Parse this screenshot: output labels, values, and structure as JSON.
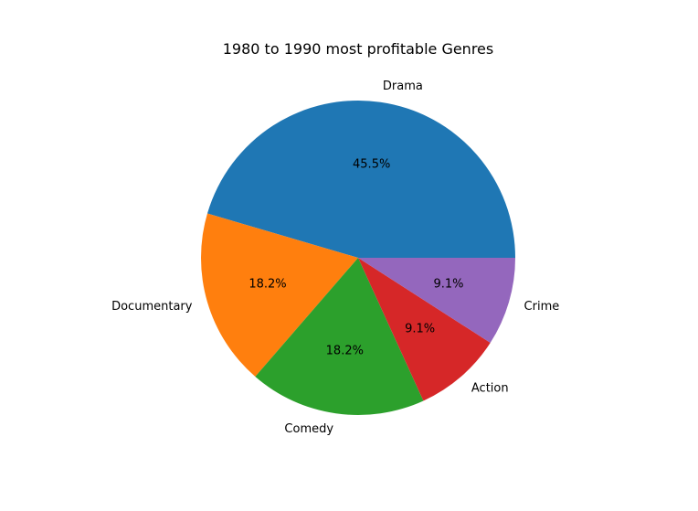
{
  "chart_data": {
    "type": "pie",
    "title": "1980 to 1990 most profitable Genres",
    "slices": [
      {
        "label": "Drama",
        "value": 45.5,
        "pct_label": "45.5%",
        "color": "#1f77b4"
      },
      {
        "label": "Documentary",
        "value": 18.2,
        "pct_label": "18.2%",
        "color": "#ff7f0e"
      },
      {
        "label": "Comedy",
        "value": 18.2,
        "pct_label": "18.2%",
        "color": "#2ca02c"
      },
      {
        "label": "Action",
        "value": 9.1,
        "pct_label": "9.1%",
        "color": "#d62728"
      },
      {
        "label": "Crime",
        "value": 9.1,
        "pct_label": "9.1%",
        "color": "#9467bd"
      }
    ],
    "start_angle_deg": 0,
    "direction": "counterclockwise"
  }
}
